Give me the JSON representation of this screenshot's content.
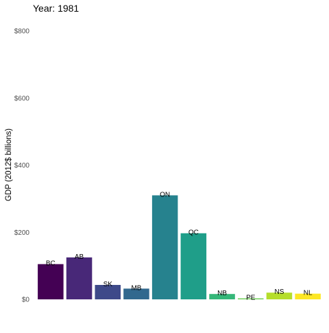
{
  "chart_data": {
    "type": "bar",
    "title": "Year: 1981",
    "xlabel": "",
    "ylabel": "GDP (2012$ billions)",
    "ylim": [
      0,
      800
    ],
    "yticks": [
      0,
      200,
      400,
      600,
      800
    ],
    "ytick_labels": [
      "$0",
      "$200",
      "$400",
      "$600",
      "$800"
    ],
    "grid": false,
    "legend": "none",
    "categories": [
      "BC",
      "AB",
      "SK",
      "MB",
      "ON",
      "QC",
      "NB",
      "PE",
      "NS",
      "NL"
    ],
    "values": [
      105,
      125,
      43,
      32,
      310,
      197,
      16,
      3,
      20,
      17
    ],
    "colors": [
      "#440154",
      "#482878",
      "#3e4989",
      "#31688e",
      "#26828e",
      "#1f9e89",
      "#35b779",
      "#6ece58",
      "#b5de2b",
      "#fde725"
    ]
  }
}
